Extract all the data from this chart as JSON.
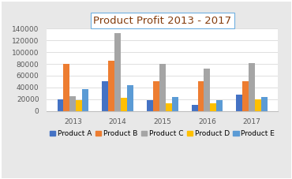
{
  "title": "Product Profit 2013 - 2017",
  "years": [
    2013,
    2014,
    2015,
    2016,
    2017
  ],
  "products": [
    "Product A",
    "Product B",
    "Product C",
    "Product D",
    "Product E"
  ],
  "values": {
    "Product A": [
      20000,
      50000,
      18000,
      10000,
      28000
    ],
    "Product B": [
      80000,
      85000,
      50000,
      50000,
      50000
    ],
    "Product C": [
      25000,
      132000,
      80000,
      72000,
      82000
    ],
    "Product D": [
      18000,
      22000,
      13000,
      13000,
      20000
    ],
    "Product E": [
      37000,
      44000,
      23000,
      18000,
      24000
    ]
  },
  "colors": {
    "Product A": "#4472C4",
    "Product B": "#ED7D31",
    "Product C": "#A5A5A5",
    "Product D": "#FFC000",
    "Product E": "#5B9BD5"
  },
  "ylim": [
    0,
    140000
  ],
  "yticks": [
    0,
    20000,
    40000,
    60000,
    80000,
    100000,
    120000,
    140000
  ],
  "fig_bg_color": "#E8E8E8",
  "plot_bg_color": "#FFFFFF",
  "title_fontsize": 9.5,
  "legend_fontsize": 6.5,
  "tick_fontsize": 6.5,
  "title_color": "#843C0C",
  "tick_color": "#595959",
  "title_box_facecolor": "#FFFFFF",
  "title_box_edgecolor": "#70B0E0",
  "grid_color": "#D9D9D9",
  "frame_color": "#BFBFBF"
}
